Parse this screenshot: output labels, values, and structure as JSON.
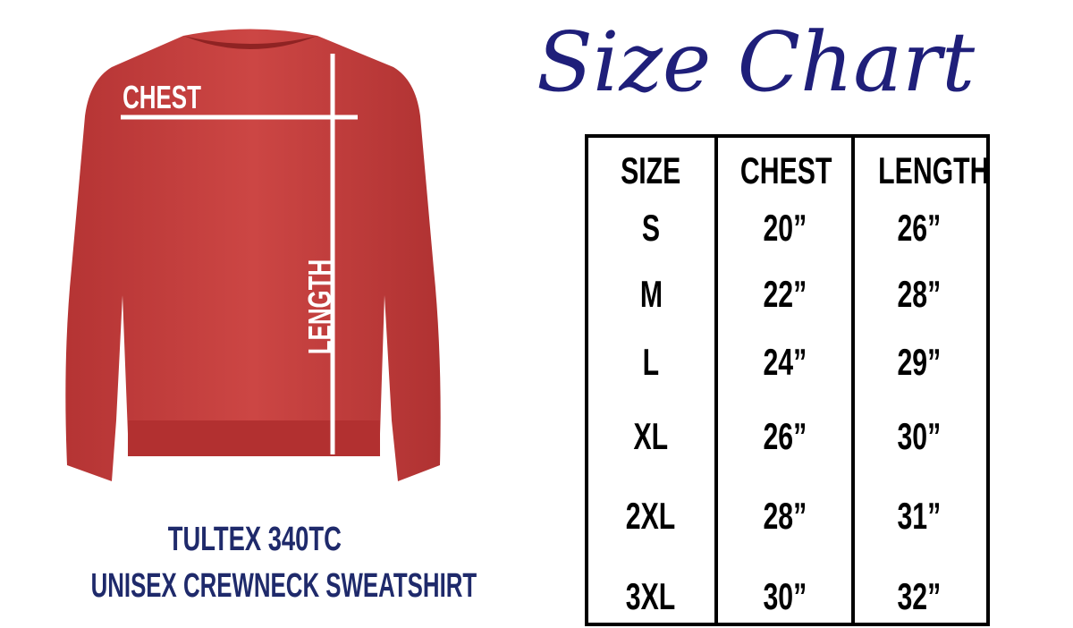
{
  "title": "Size Chart",
  "product": {
    "line1": "TULTEX 340TC",
    "line2": "UNISEX CREWNECK SWEATSHIRT",
    "color": "#c23b3b"
  },
  "measure_labels": {
    "chest": "CHEST",
    "length": "LENGTH"
  },
  "table": {
    "headers": [
      "SIZE",
      "CHEST",
      "LENGTH"
    ],
    "rows": [
      [
        "S",
        "20”",
        "26”"
      ],
      [
        "M",
        "22”",
        "28”"
      ],
      [
        "L",
        "24”",
        "29”"
      ],
      [
        "XL",
        "26”",
        "30”"
      ],
      [
        "2XL",
        "28”",
        "31”"
      ],
      [
        "3XL",
        "30”",
        "32”"
      ]
    ]
  },
  "colors": {
    "navy": "#1f2a6b",
    "script": "#1f1f7a",
    "shirt": "#c23b3b"
  }
}
